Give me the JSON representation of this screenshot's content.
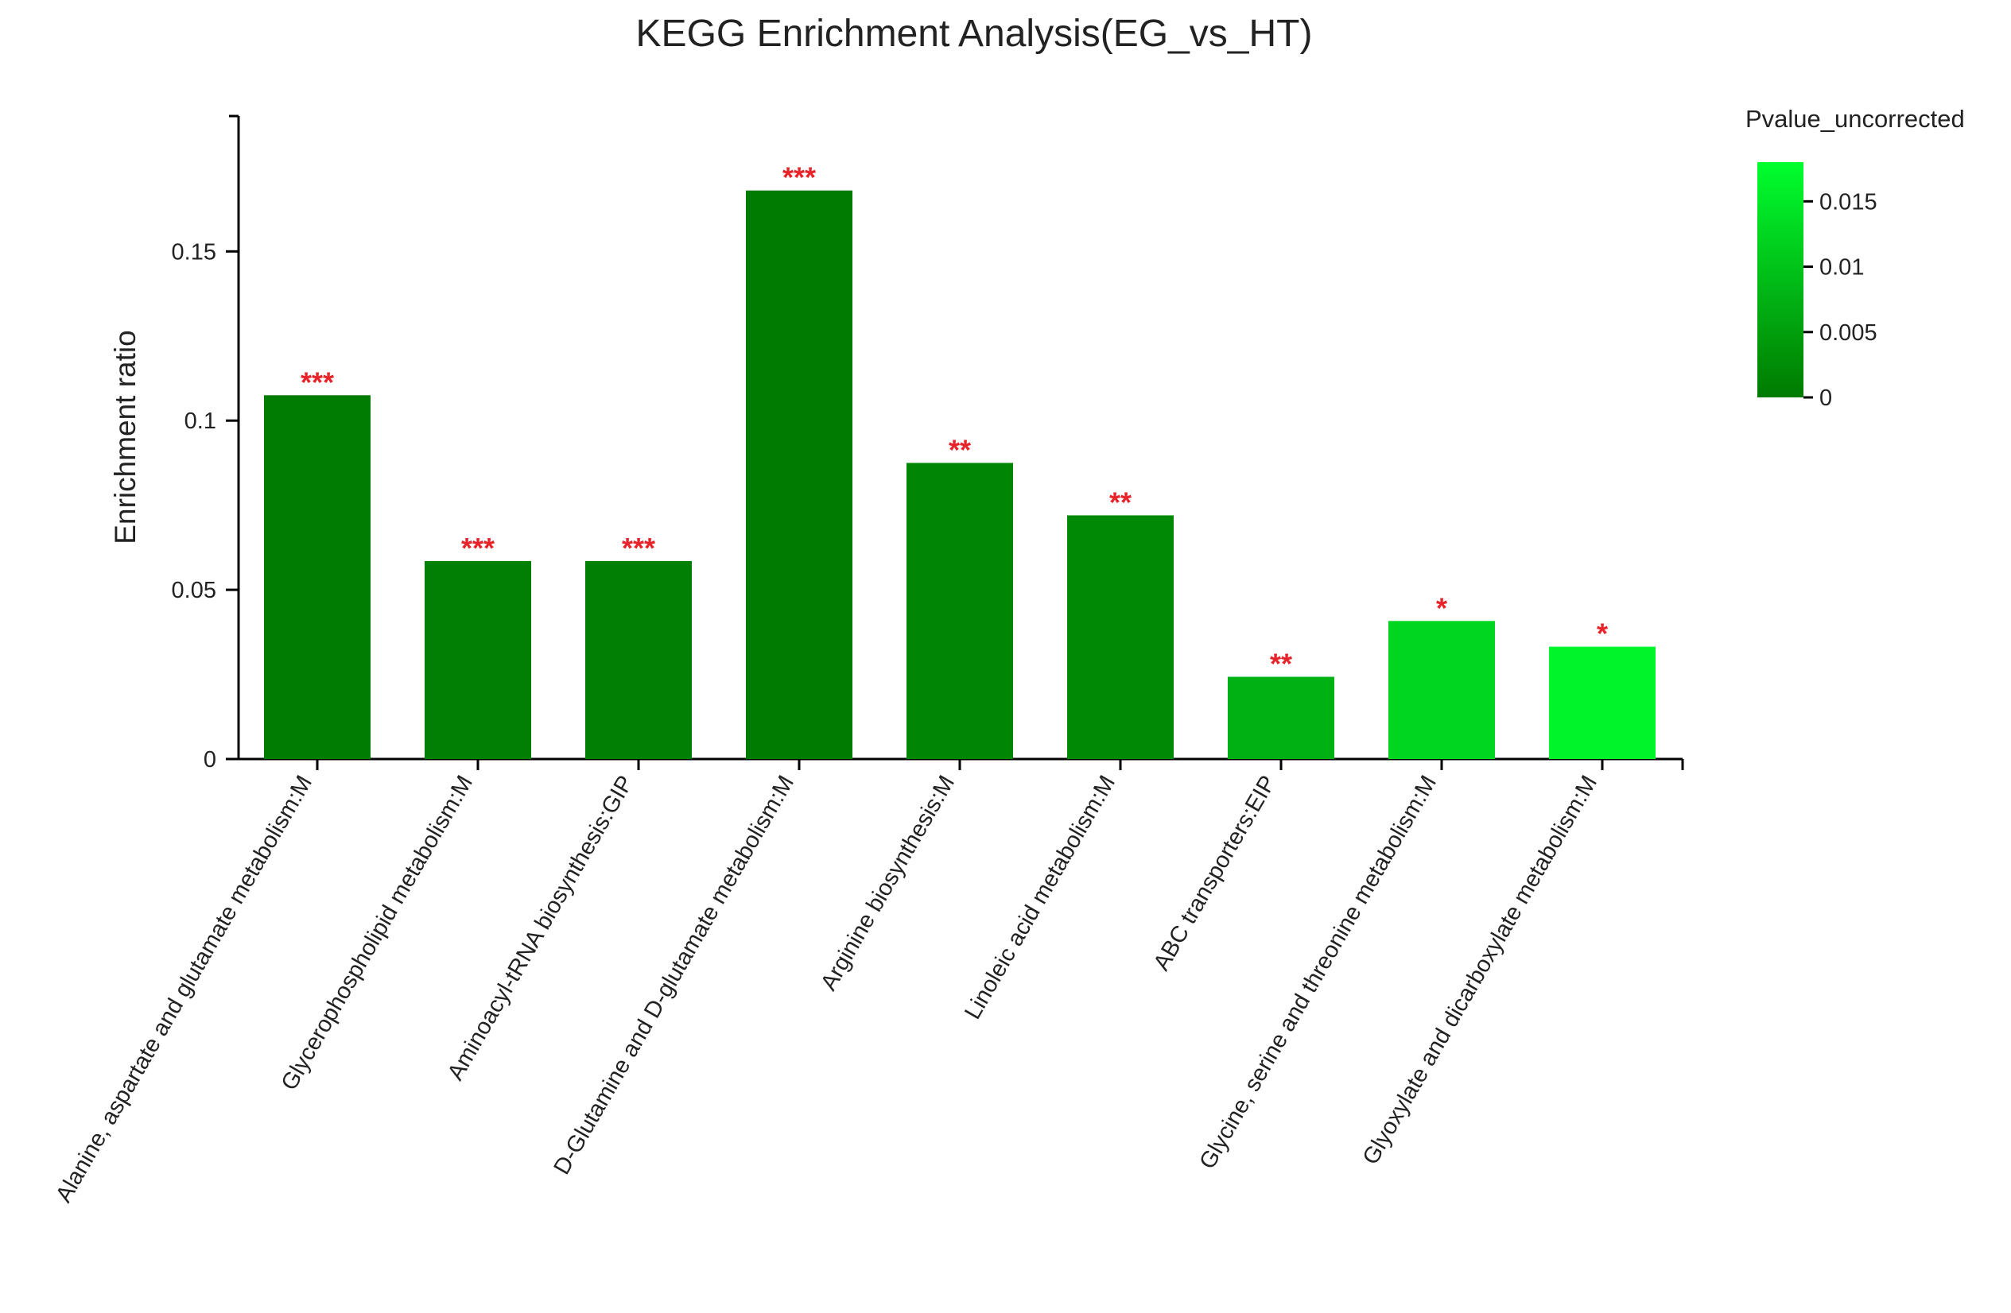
{
  "chart_data": {
    "type": "bar",
    "title": "KEGG Enrichment Analysis(EG_vs_HT)",
    "ylabel": "Enrichment ratio",
    "xlabel": "",
    "ylim": [
      0,
      0.19
    ],
    "yticks": [
      0,
      0.05,
      0.1,
      0.15
    ],
    "ytick_labels": [
      "0",
      "0.05",
      "0.1",
      "0.15"
    ],
    "grid": false,
    "categories": [
      "Alanine, aspartate and glutamate metabolism:M",
      "Glycerophospholipid metabolism:M",
      "Aminoacyl-tRNA biosynthesis:GIP",
      "D-Glutamine and D-glutamate metabolism:M",
      "Arginine biosynthesis:M",
      "Linoleic acid metabolism:M",
      "ABC transporters:EIP",
      "Glycine, serine and threonine metabolism:M",
      "Glyoxylate and dicarboxylate metabolism:M"
    ],
    "values": [
      0.1075,
      0.0585,
      0.0585,
      0.168,
      0.0875,
      0.072,
      0.0243,
      0.0408,
      0.0332
    ],
    "pvalues": [
      0.0004,
      0.0008,
      0.0008,
      0.0002,
      0.0015,
      0.002,
      0.0075,
      0.0125,
      0.0165
    ],
    "significance": [
      "***",
      "***",
      "***",
      "***",
      "**",
      "**",
      "**",
      "*",
      "*"
    ],
    "legend": {
      "title": "Pvalue_uncorrected",
      "placement": "top-right",
      "range": [
        0,
        0.018
      ],
      "ticks": [
        0,
        0.005,
        0.01,
        0.015
      ],
      "tick_labels": [
        "0",
        "0.005",
        "0.01",
        "0.015"
      ],
      "color_low": "#007a00",
      "color_high": "#00ff2e"
    },
    "colors": {
      "significance": "#e8232a",
      "axis": "#000000"
    }
  }
}
